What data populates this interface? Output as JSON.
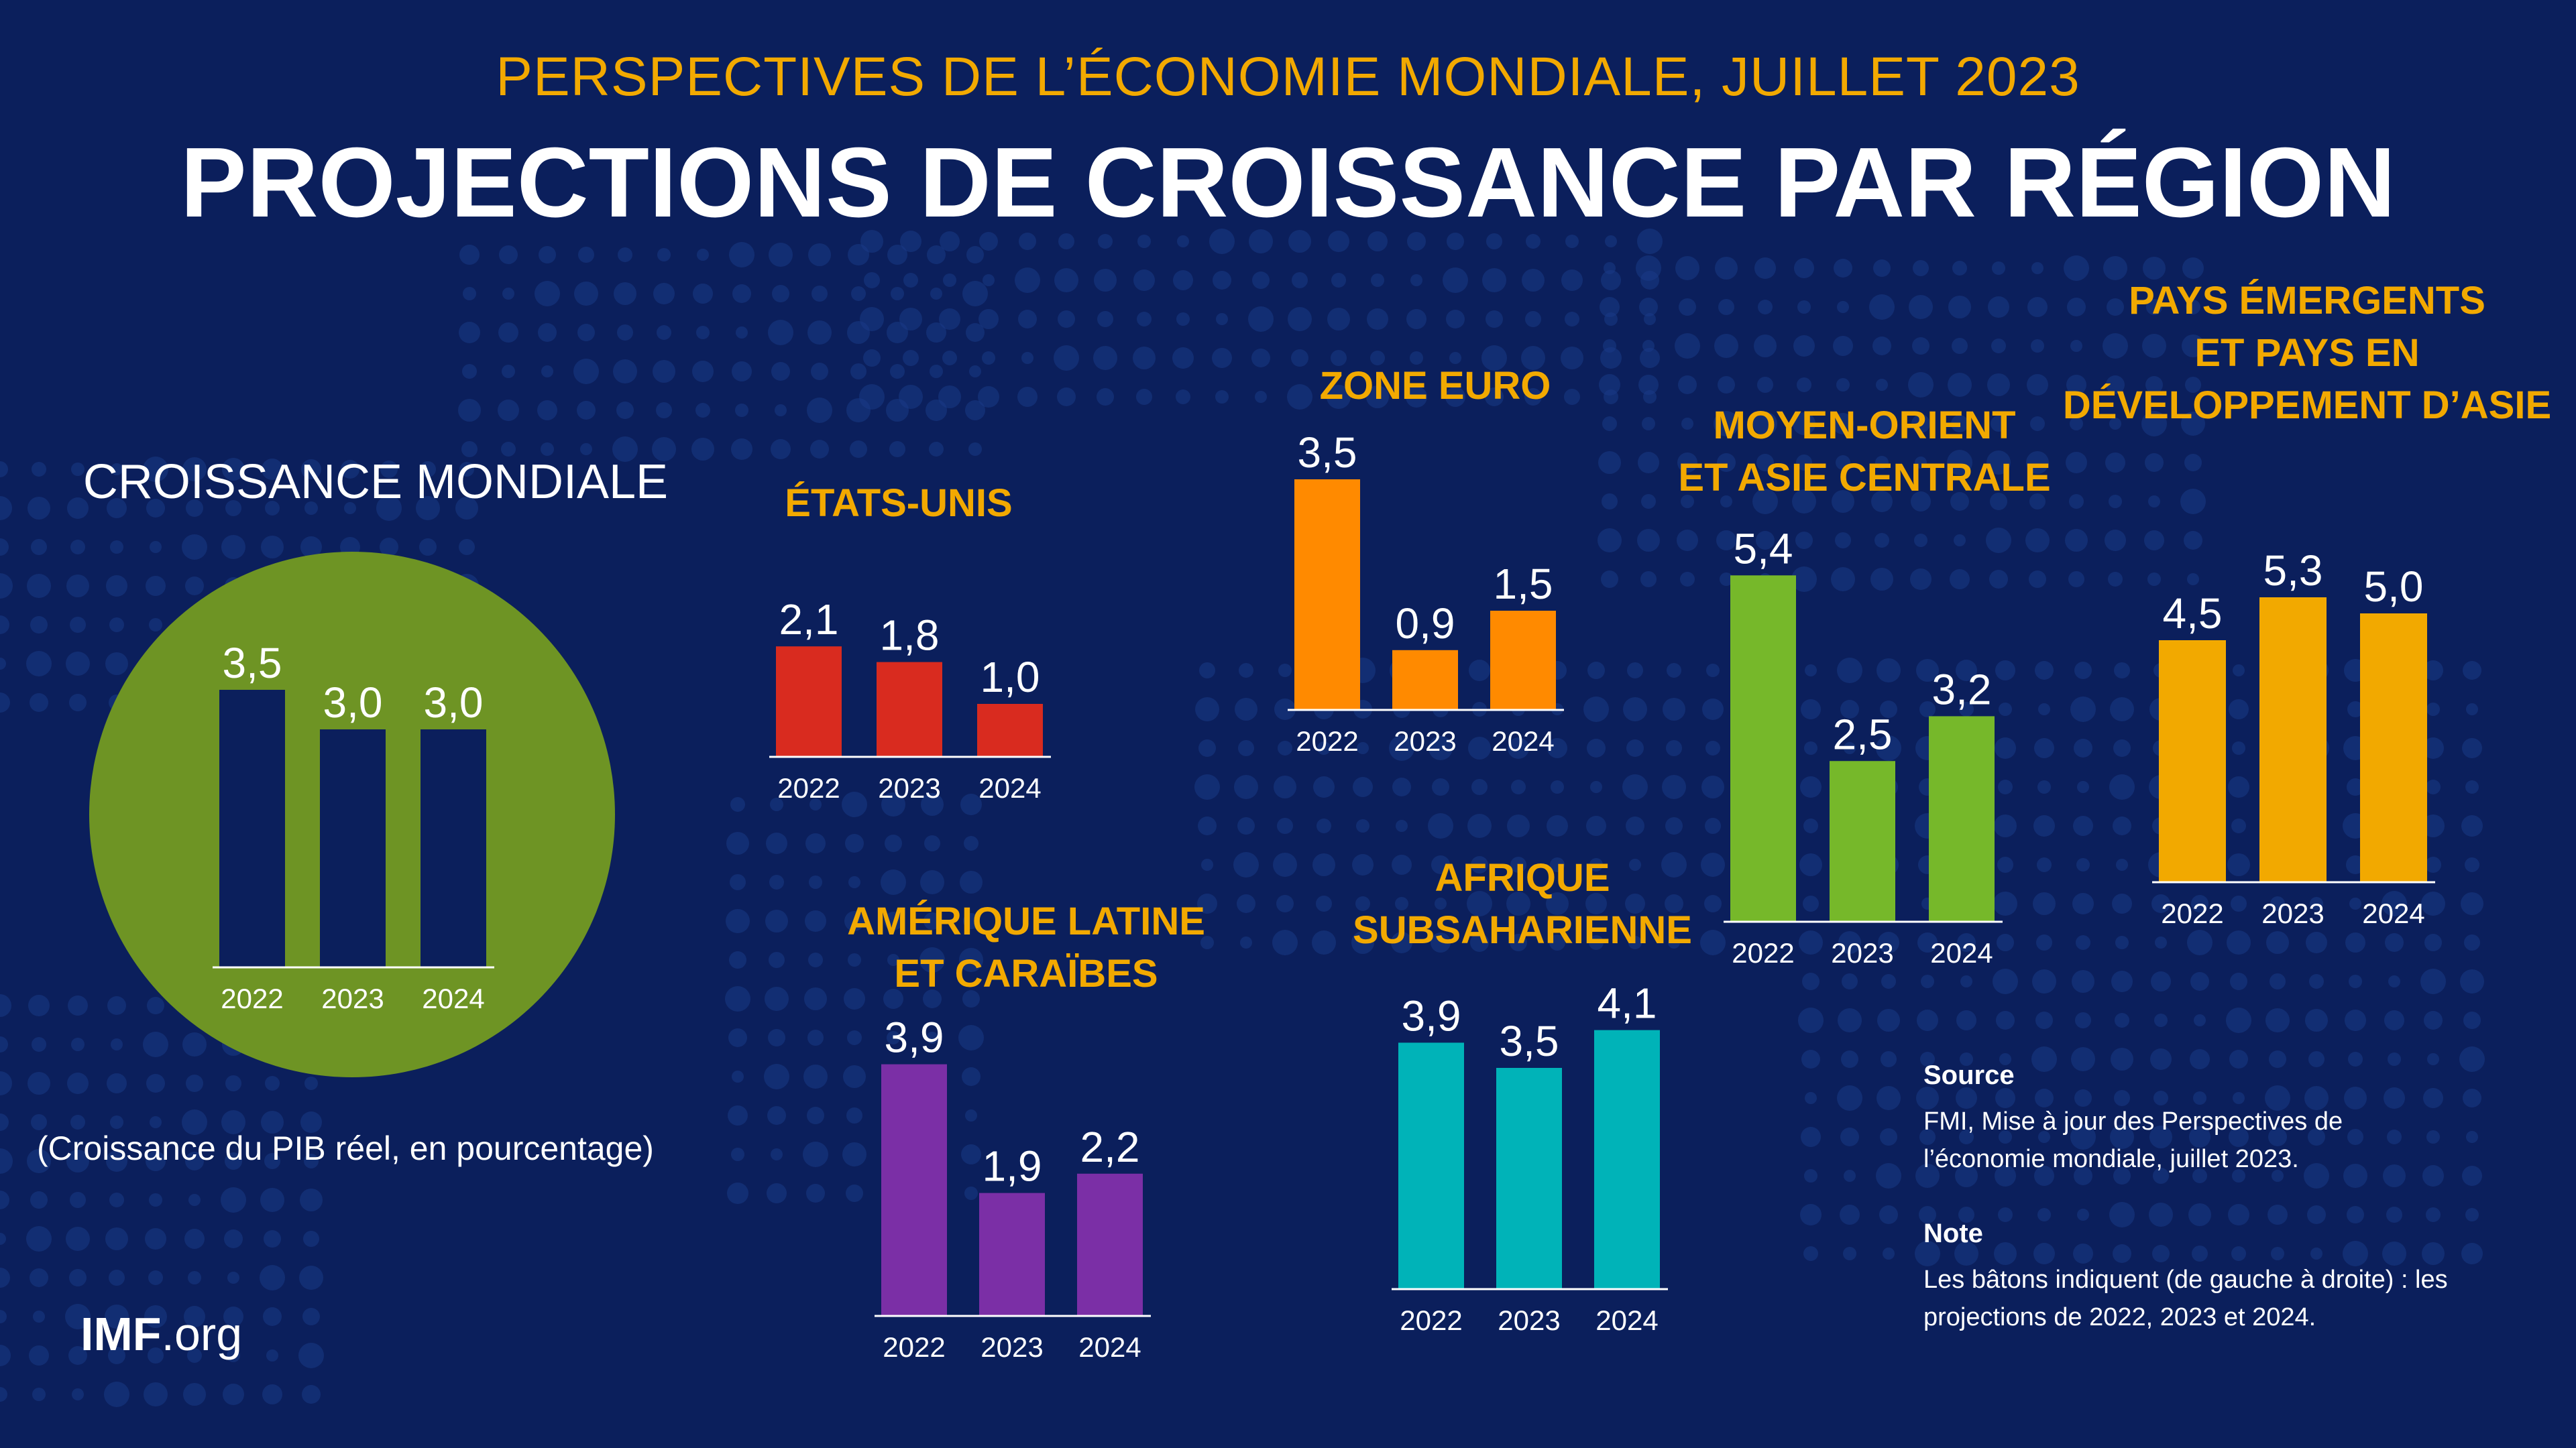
{
  "header": {
    "subtitle": "PERSPECTIVES DE L’ÉCONOMIE MONDIALE, JUILLET 2023",
    "title": "PROJECTIONS DE CROISSANCE PAR RÉGION"
  },
  "colors": {
    "background": "#0b1f5c",
    "accent": "#f2a900",
    "world_circle": "#6e9424"
  },
  "chart_data": [
    {
      "type": "bar",
      "title": "CROISSANCE MONDIALE",
      "categories": [
        "2022",
        "2023",
        "2024"
      ],
      "values": [
        3.5,
        3.0,
        3.0
      ],
      "value_labels": [
        "3,5",
        "3,0",
        "3,0"
      ],
      "color": "#0b1f5c"
    },
    {
      "type": "bar",
      "title": "ÉTATS-UNIS",
      "categories": [
        "2022",
        "2023",
        "2024"
      ],
      "values": [
        2.1,
        1.8,
        1.0
      ],
      "value_labels": [
        "2,1",
        "1,8",
        "1,0"
      ],
      "color": "#d92b1f"
    },
    {
      "type": "bar",
      "title": "ZONE EURO",
      "categories": [
        "2022",
        "2023",
        "2024"
      ],
      "values": [
        3.5,
        0.9,
        1.5
      ],
      "value_labels": [
        "3,5",
        "0,9",
        "1,5"
      ],
      "color": "#ff8a00"
    },
    {
      "type": "bar",
      "title": "MOYEN-ORIENT ET ASIE CENTRALE",
      "categories": [
        "2022",
        "2023",
        "2024"
      ],
      "values": [
        5.4,
        2.5,
        3.2
      ],
      "value_labels": [
        "5,4",
        "2,5",
        "3,2"
      ],
      "color": "#76b82a"
    },
    {
      "type": "bar",
      "title": "PAYS ÉMERGENTS ET PAYS EN DÉVELOPPEMENT D’ASIE",
      "categories": [
        "2022",
        "2023",
        "2024"
      ],
      "values": [
        4.5,
        5.3,
        5.0
      ],
      "value_labels": [
        "4,5",
        "5,3",
        "5,0"
      ],
      "color": "#f2a900"
    },
    {
      "type": "bar",
      "title": "AMÉRIQUE LATINE ET CARAÏBES",
      "categories": [
        "2022",
        "2023",
        "2024"
      ],
      "values": [
        3.9,
        1.9,
        2.2
      ],
      "value_labels": [
        "3,9",
        "1,9",
        "2,2"
      ],
      "color": "#7b2fa6"
    },
    {
      "type": "bar",
      "title": "AFRIQUE SUBSAHARIENNE",
      "categories": [
        "2022",
        "2023",
        "2024"
      ],
      "values": [
        3.9,
        3.5,
        4.1
      ],
      "value_labels": [
        "3,9",
        "3,5",
        "4,1"
      ],
      "color": "#00b3b8"
    }
  ],
  "titles": {
    "world": "CROISSANCE MONDIALE",
    "us": "ÉTATS-UNIS",
    "euro": "ZONE EURO",
    "mena_1": "MOYEN-ORIENT",
    "mena_2": "ET ASIE CENTRALE",
    "asia_1": "PAYS ÉMERGENTS",
    "asia_2": "ET PAYS EN",
    "asia_3": "DÉVELOPPEMENT D’ASIE",
    "latam_1": "AMÉRIQUE LATINE",
    "latam_2": "ET CARAÏBES",
    "ssa_1": "AFRIQUE",
    "ssa_2": "SUBSAHARIENNE"
  },
  "gdp_note": "(Croissance du PIB réel, en pourcentage)",
  "source": {
    "heading": "Source",
    "line1": "FMI, Mise à jour des Perspectives de",
    "line2": "l’économie mondiale, juillet 2023."
  },
  "note": {
    "heading": "Note",
    "line1": "Les bâtons indiquent (de gauche à droite) : les",
    "line2": "projections de 2022, 2023 et 2024."
  },
  "logo": {
    "bold": "IMF",
    "rest": ".org"
  }
}
